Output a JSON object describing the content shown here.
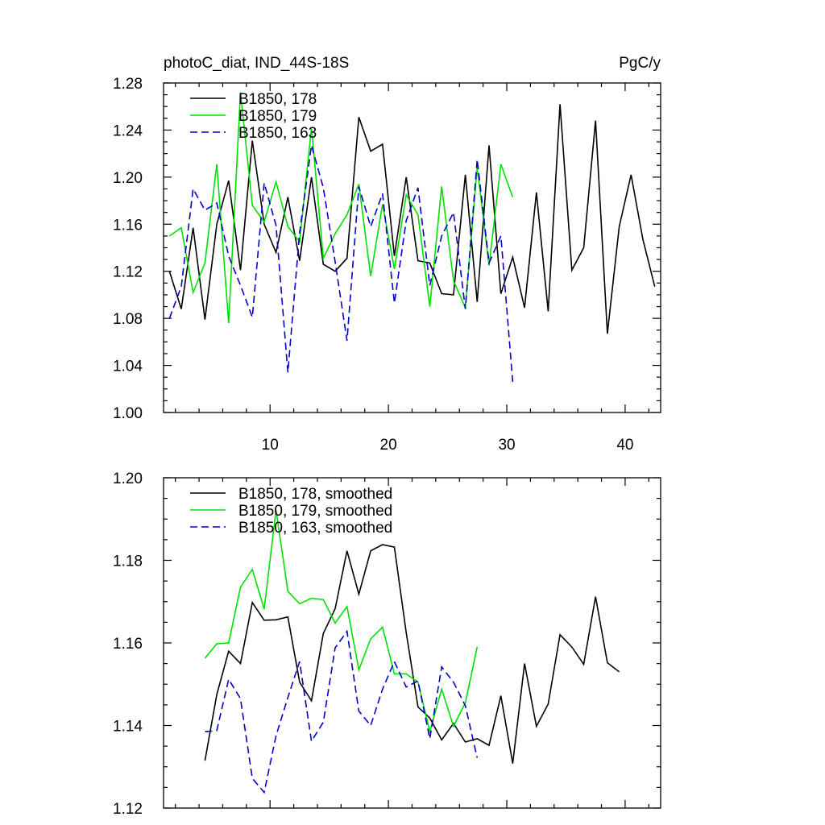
{
  "chart_data": [
    {
      "type": "line",
      "title": "photoC_diat, IND_44S-18S",
      "units": "PgC/y",
      "xlabel": "",
      "ylabel": "",
      "xlim": [
        1,
        43
      ],
      "ylim": [
        1.0,
        1.28
      ],
      "xticks": [
        10,
        20,
        30,
        40
      ],
      "xtick_labels": [
        "10",
        "20",
        "30",
        "40"
      ],
      "yticks": [
        1.0,
        1.04,
        1.08,
        1.12,
        1.16,
        1.2,
        1.24,
        1.28
      ],
      "ytick_labels": [
        "1.00",
        "1.04",
        "1.08",
        "1.12",
        "1.16",
        "1.20",
        "1.24",
        "1.28"
      ],
      "legend_position": "top-left",
      "series": [
        {
          "name": "B1850, 178",
          "color": "#000000",
          "dash": "solid",
          "x": [
            1.5,
            2.5,
            3.5,
            4.5,
            5.5,
            6.5,
            7.5,
            8.5,
            9.5,
            10.5,
            11.5,
            12.5,
            13.5,
            14.5,
            15.5,
            16.5,
            17.5,
            18.5,
            19.5,
            20.5,
            21.5,
            22.5,
            23.5,
            24.5,
            25.5,
            26.5,
            27.5,
            28.5,
            29.5,
            30.5,
            31.5,
            32.5,
            33.5,
            34.5,
            35.5,
            36.5,
            37.5,
            38.5,
            39.5,
            40.5,
            41.5,
            42.5
          ],
          "values": [
            1.12,
            1.088,
            1.157,
            1.079,
            1.16,
            1.197,
            1.121,
            1.231,
            1.16,
            1.136,
            1.183,
            1.129,
            1.2,
            1.126,
            1.12,
            1.131,
            1.251,
            1.222,
            1.228,
            1.133,
            1.2,
            1.129,
            1.127,
            1.101,
            1.1,
            1.202,
            1.094,
            1.227,
            1.101,
            1.132,
            1.089,
            1.187,
            1.086,
            1.262,
            1.121,
            1.14,
            1.248,
            1.067,
            1.158,
            1.202,
            1.147,
            1.107
          ]
        },
        {
          "name": "B1850, 179",
          "color": "#00e000",
          "dash": "solid",
          "x": [
            1.5,
            2.5,
            3.5,
            4.5,
            5.5,
            6.5,
            7.5,
            8.5,
            9.5,
            10.5,
            11.5,
            12.5,
            13.5,
            14.5,
            15.5,
            16.5,
            17.5,
            18.5,
            19.5,
            20.5,
            21.5,
            22.5,
            23.5,
            24.5,
            25.5,
            26.5,
            27.5,
            28.5,
            29.5,
            30.5
          ],
          "values": [
            1.15,
            1.157,
            1.102,
            1.127,
            1.211,
            1.076,
            1.272,
            1.176,
            1.162,
            1.196,
            1.158,
            1.145,
            1.242,
            1.131,
            1.152,
            1.168,
            1.194,
            1.116,
            1.177,
            1.122,
            1.185,
            1.168,
            1.09,
            1.192,
            1.112,
            1.089,
            1.208,
            1.125,
            1.211,
            1.183
          ]
        },
        {
          "name": "B1850, 163",
          "color": "#0000cc",
          "dash": "dashed",
          "x": [
            1.5,
            2.5,
            3.5,
            4.5,
            5.5,
            6.5,
            7.5,
            8.5,
            9.5,
            10.5,
            11.5,
            12.5,
            13.5,
            14.5,
            15.5,
            16.5,
            17.5,
            18.5,
            19.5,
            20.5,
            21.5,
            22.5,
            23.5,
            24.5,
            25.5,
            26.5,
            27.5,
            28.5,
            29.5,
            30.5
          ],
          "values": [
            1.08,
            1.107,
            1.19,
            1.172,
            1.178,
            1.133,
            1.108,
            1.081,
            1.195,
            1.159,
            1.034,
            1.153,
            1.227,
            1.191,
            1.128,
            1.061,
            1.192,
            1.158,
            1.186,
            1.093,
            1.163,
            1.191,
            1.108,
            1.15,
            1.17,
            1.088,
            1.215,
            1.127,
            1.15,
            1.026
          ]
        }
      ]
    },
    {
      "type": "line",
      "title": "",
      "xlabel": "",
      "ylabel": "",
      "xlim": [
        1,
        43
      ],
      "ylim": [
        1.12,
        1.2
      ],
      "xticks": [
        10,
        20,
        30,
        40
      ],
      "yticks": [
        1.12,
        1.14,
        1.16,
        1.18,
        1.2
      ],
      "ytick_labels": [
        "1.12",
        "1.14",
        "1.16",
        "1.18",
        "1.20"
      ],
      "legend_position": "top-left",
      "series": [
        {
          "name": "B1850, 178, smoothed",
          "color": "#000000",
          "dash": "solid",
          "x": [
            4.5,
            5.5,
            6.5,
            7.5,
            8.5,
            9.5,
            10.5,
            11.5,
            12.5,
            13.5,
            14.5,
            15.5,
            16.5,
            17.5,
            18.5,
            19.5,
            20.5,
            21.5,
            22.5,
            23.5,
            24.5,
            25.5,
            26.5,
            27.5,
            28.5,
            29.5,
            30.5,
            31.5,
            32.5,
            33.5,
            34.5,
            35.5,
            36.5,
            37.5,
            38.5,
            39.5
          ],
          "values": [
            1.1315,
            1.1475,
            1.158,
            1.155,
            1.1698,
            1.1655,
            1.1656,
            1.1663,
            1.1505,
            1.146,
            1.1623,
            1.1683,
            1.1823,
            1.1718,
            1.1823,
            1.1838,
            1.1832,
            1.1625,
            1.1445,
            1.1418,
            1.1365,
            1.1405,
            1.136,
            1.1368,
            1.1352,
            1.1472,
            1.1308,
            1.155,
            1.1398,
            1.1452,
            1.162,
            1.159,
            1.1548,
            1.1712,
            1.1552,
            1.153
          ]
        },
        {
          "name": "B1850, 179, smoothed",
          "color": "#00e000",
          "dash": "solid",
          "x": [
            4.5,
            5.5,
            6.5,
            7.5,
            8.5,
            9.5,
            10.5,
            11.5,
            12.5,
            13.5,
            14.5,
            15.5,
            16.5,
            17.5,
            18.5,
            19.5,
            20.5,
            21.5,
            22.5,
            23.5,
            24.5,
            25.5,
            26.5,
            27.5
          ],
          "values": [
            1.1563,
            1.1598,
            1.16,
            1.1735,
            1.1778,
            1.1682,
            1.1922,
            1.1725,
            1.1695,
            1.1708,
            1.1705,
            1.1648,
            1.1688,
            1.1535,
            1.161,
            1.1638,
            1.1525,
            1.1525,
            1.1505,
            1.1385,
            1.1488,
            1.1398,
            1.1455,
            1.159
          ]
        },
        {
          "name": "B1850, 163, smoothed",
          "color": "#0000cc",
          "dash": "dashed",
          "x": [
            4.5,
            5.5,
            6.5,
            7.5,
            8.5,
            9.5,
            10.5,
            11.5,
            12.5,
            13.5,
            14.5,
            15.5,
            16.5,
            17.5,
            18.5,
            19.5,
            20.5,
            21.5,
            22.5,
            23.5,
            24.5,
            25.5,
            26.5,
            27.5
          ],
          "values": [
            1.1385,
            1.1388,
            1.1512,
            1.1465,
            1.1272,
            1.1238,
            1.1375,
            1.1468,
            1.1555,
            1.1362,
            1.1408,
            1.1588,
            1.1628,
            1.1435,
            1.14,
            1.1488,
            1.1555,
            1.1493,
            1.1508,
            1.1368,
            1.1542,
            1.1505,
            1.1448,
            1.1322
          ]
        }
      ]
    }
  ]
}
